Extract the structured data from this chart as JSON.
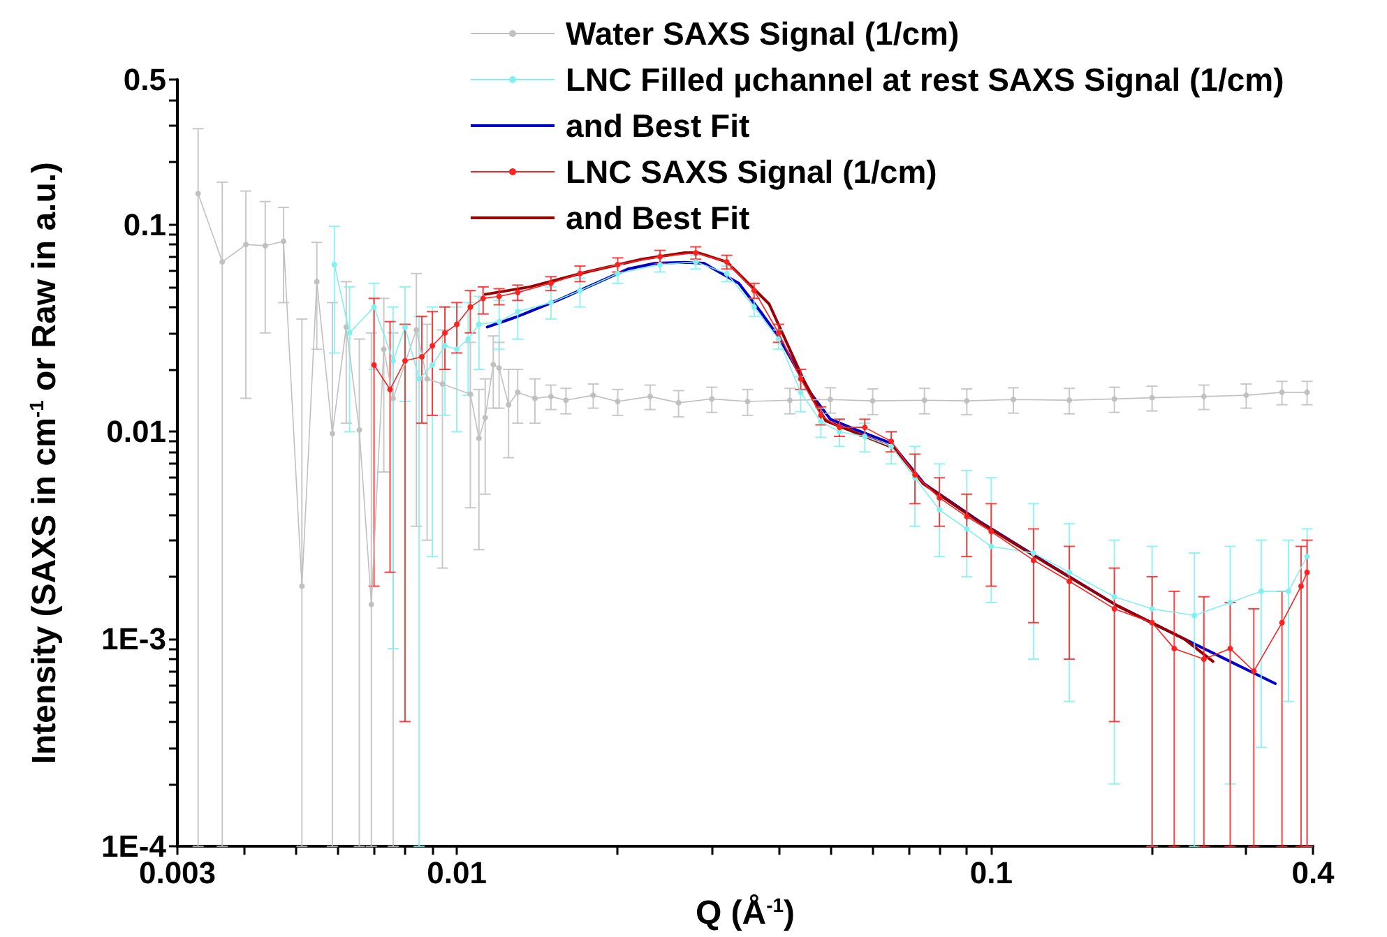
{
  "chart_data": {
    "type": "line",
    "xlabel": "Q (Å$^{-1}$)",
    "ylabel": "Intensity (SAXS in cm$^{-1}$ or Raw in a.u.)",
    "log": "xy",
    "grid": false,
    "legend": "top right",
    "xlim": [
      0.003,
      0.4
    ],
    "ylim": [
      0.0001,
      0.5
    ],
    "xticks": [
      0.003,
      {
        "value": 0.004,
        "label": null
      },
      {
        "value": 0.005,
        "label": null
      },
      {
        "value": 0.006,
        "label": null
      },
      {
        "value": 0.007,
        "label": null
      },
      {
        "value": 0.008,
        "label": null
      },
      {
        "value": 0.009,
        "label": null
      },
      0.01,
      {
        "value": 0.02,
        "label": null
      },
      {
        "value": 0.03,
        "label": null
      },
      {
        "value": 0.04,
        "label": null
      },
      {
        "value": 0.05,
        "label": null
      },
      {
        "value": 0.06,
        "label": null
      },
      {
        "value": 0.07,
        "label": null
      },
      {
        "value": 0.08,
        "label": null
      },
      {
        "value": 0.09,
        "label": null
      },
      0.1,
      {
        "value": 0.2,
        "label": null
      },
      {
        "value": 0.3,
        "label": null
      },
      0.4
    ],
    "yticks": [
      {
        "value": 0.0001,
        "label": "1E-4"
      },
      {
        "value": 0.0002,
        "label": null
      },
      {
        "value": 0.0003,
        "label": null
      },
      {
        "value": 0.0004,
        "label": null
      },
      {
        "value": 0.0005,
        "label": null
      },
      {
        "value": 0.0006,
        "label": null
      },
      {
        "value": 0.0007,
        "label": null
      },
      {
        "value": 0.0008,
        "label": null
      },
      {
        "value": 0.0009,
        "label": null
      },
      {
        "value": 0.001,
        "label": "1E-3"
      },
      {
        "value": 0.002,
        "label": null
      },
      {
        "value": 0.003,
        "label": null
      },
      {
        "value": 0.004,
        "label": null
      },
      {
        "value": 0.005,
        "label": null
      },
      {
        "value": 0.006,
        "label": null
      },
      {
        "value": 0.007,
        "label": null
      },
      {
        "value": 0.008,
        "label": null
      },
      {
        "value": 0.009,
        "label": null
      },
      0.01,
      {
        "value": 0.02,
        "label": null
      },
      {
        "value": 0.03,
        "label": null
      },
      {
        "value": 0.04,
        "label": null
      },
      {
        "value": 0.05,
        "label": null
      },
      {
        "value": 0.06,
        "label": null
      },
      {
        "value": 0.07,
        "label": null
      },
      {
        "value": 0.08,
        "label": null
      },
      {
        "value": 0.09,
        "label": null
      },
      0.1,
      {
        "value": 0.2,
        "label": null
      },
      {
        "value": 0.3,
        "label": null
      },
      {
        "value": 0.4,
        "label": null
      },
      0.5
    ],
    "series": [
      {
        "name": "Water SAXS Signal (1/cm)",
        "marker": "circle",
        "color": "#c0c0c0",
        "x": [
          0.00328,
          0.00364,
          0.00403,
          0.00438,
          0.00474,
          0.00513,
          0.00547,
          0.00585,
          0.00621,
          0.00657,
          0.00692,
          0.0073,
          0.0076,
          0.0084,
          0.0088,
          0.0094,
          0.0106,
          0.011,
          0.0113,
          0.0117,
          0.012,
          0.0125,
          0.013,
          0.014,
          0.015,
          0.016,
          0.018,
          0.02,
          0.023,
          0.026,
          0.03,
          0.035,
          0.042,
          0.05,
          0.06,
          0.075,
          0.09,
          0.11,
          0.14,
          0.17,
          0.2,
          0.25,
          0.3,
          0.35,
          0.39
        ],
        "values": [
          0.141,
          0.066,
          0.08,
          0.079,
          0.083,
          0.0018,
          0.053,
          0.0098,
          0.032,
          0.0102,
          0.00147,
          0.025,
          0.0145,
          0.031,
          0.018,
          0.017,
          0.0152,
          0.0093,
          0.0117,
          0.0211,
          0.0203,
          0.0135,
          0.0155,
          0.0145,
          0.0148,
          0.0142,
          0.015,
          0.014,
          0.0148,
          0.0138,
          0.0144,
          0.014,
          0.0142,
          0.0143,
          0.0141,
          0.0142,
          0.0141,
          0.0143,
          0.0142,
          0.0144,
          0.0146,
          0.0148,
          0.015,
          0.0155,
          0.0155
        ],
        "errors": [
          [
            0.0001,
            0.29
          ],
          [
            0.0001,
            0.16
          ],
          [
            0.0145,
            0.145
          ],
          [
            0.03,
            0.129
          ],
          [
            0.042,
            0.121
          ],
          [
            0.0001,
            0.035
          ],
          [
            0.025,
            0.082
          ],
          [
            0.0001,
            0.042
          ],
          [
            0.011,
            0.053
          ],
          [
            0.0001,
            0.028
          ],
          [
            0.0001,
            0.03
          ],
          [
            0.0064,
            0.044
          ],
          [
            0.0001,
            0.03
          ],
          [
            0.0035,
            0.058
          ],
          [
            0.003,
            0.033
          ],
          [
            0.0022,
            0.031
          ],
          [
            0.0043,
            0.027
          ],
          [
            0.0027,
            0.016
          ],
          [
            0.005,
            0.018
          ],
          [
            0.013,
            0.029
          ],
          [
            0.013,
            0.027
          ],
          [
            0.0075,
            0.02
          ],
          [
            0.011,
            0.02
          ],
          [
            0.011,
            0.018
          ],
          0.002,
          0.002,
          0.002,
          0.002,
          0.002,
          0.002,
          0.002,
          0.002,
          0.002,
          0.002,
          0.002,
          0.002,
          0.002,
          0.002,
          0.002,
          0.002,
          0.002,
          0.002,
          0.002,
          0.002,
          0.002
        ]
      },
      {
        "name": "LNC Filled µchannel at rest SAXS Signal (1/cm)",
        "marker": "circle",
        "color": "#80f0f0",
        "x": [
          0.0059,
          0.0063,
          0.007,
          0.0076,
          0.008,
          0.0085,
          0.009,
          0.0095,
          0.01,
          0.0105,
          0.011,
          0.012,
          0.013,
          0.015,
          0.017,
          0.02,
          0.024,
          0.028,
          0.032,
          0.036,
          0.04,
          0.044,
          0.048,
          0.052,
          0.058,
          0.065,
          0.072,
          0.08,
          0.09,
          0.1,
          0.12,
          0.14,
          0.17,
          0.2,
          0.24,
          0.28,
          0.32,
          0.36,
          0.39
        ],
        "values": [
          0.064,
          0.03,
          0.04,
          0.022,
          0.032,
          0.018,
          0.021,
          0.026,
          0.025,
          0.028,
          0.033,
          0.034,
          0.038,
          0.042,
          0.048,
          0.058,
          0.064,
          0.066,
          0.058,
          0.04,
          0.028,
          0.0155,
          0.0112,
          0.01,
          0.0095,
          0.0085,
          0.006,
          0.0042,
          0.0034,
          0.0028,
          0.0026,
          0.0021,
          0.0016,
          0.0014,
          0.0013,
          0.0015,
          0.0017,
          0.0017,
          0.0025
        ],
        "errors": [
          [
            0.024,
            0.098
          ],
          [
            0.01,
            0.05
          ],
          [
            0.02,
            0.052
          ],
          [
            0.0009,
            0.04
          ],
          [
            0.014,
            0.05
          ],
          [
            0.0001,
            0.036
          ],
          [
            0.0025,
            0.04
          ],
          [
            0.012,
            0.04
          ],
          [
            0.01,
            0.04
          ],
          [
            0.015,
            0.042
          ],
          [
            0.02,
            0.045
          ],
          [
            0.025,
            0.043
          ],
          [
            0.028,
            0.047
          ],
          [
            0.035,
            0.05
          ],
          [
            0.04,
            0.055
          ],
          [
            0.052,
            0.064
          ],
          0.005,
          0.005,
          0.005,
          0.004,
          0.003,
          0.003,
          0.0018,
          0.0015,
          0.0015,
          0.0015,
          [
            0.0035,
            0.0085
          ],
          [
            0.0025,
            0.007
          ],
          [
            0.002,
            0.0065
          ],
          [
            0.0015,
            0.006
          ],
          [
            0.0008,
            0.0045
          ],
          [
            0.0005,
            0.0036
          ],
          [
            0.0002,
            0.003
          ],
          [
            0.0001,
            0.0028
          ],
          [
            0.0001,
            0.0026
          ],
          [
            0.0002,
            0.0028
          ],
          [
            0.0003,
            0.003
          ],
          [
            0.0005,
            0.003
          ],
          [
            0.0001,
            0.0034
          ]
        ]
      },
      {
        "name": "and Best Fit",
        "marker": "none",
        "color": "#0000cc",
        "x": [
          0.0114,
          0.013,
          0.0156,
          0.0185,
          0.0209,
          0.0235,
          0.0267,
          0.029,
          0.0337,
          0.037,
          0.04,
          0.0458,
          0.05,
          0.056,
          0.065,
          0.075,
          0.095,
          0.128,
          0.172,
          0.23,
          0.28,
          0.34
        ],
        "values": [
          0.032,
          0.036,
          0.0436,
          0.053,
          0.061,
          0.065,
          0.0657,
          0.065,
          0.052,
          0.038,
          0.0287,
          0.0155,
          0.0115,
          0.0102,
          0.0088,
          0.0056,
          0.0037,
          0.0023,
          0.00145,
          0.001,
          0.00078,
          0.00061
        ]
      },
      {
        "name": "LNC SAXS Signal (1/cm)",
        "marker": "circle",
        "color": "#ff2020",
        "x": [
          0.007,
          0.0075,
          0.008,
          0.0086,
          0.009,
          0.0095,
          0.01,
          0.0106,
          0.0112,
          0.012,
          0.013,
          0.015,
          0.017,
          0.02,
          0.024,
          0.028,
          0.032,
          0.036,
          0.04,
          0.044,
          0.048,
          0.052,
          0.058,
          0.065,
          0.072,
          0.08,
          0.09,
          0.1,
          0.12,
          0.14,
          0.17,
          0.2,
          0.22,
          0.25,
          0.28,
          0.31,
          0.35,
          0.38,
          0.39
        ],
        "values": [
          0.021,
          0.016,
          0.022,
          0.023,
          0.026,
          0.03,
          0.033,
          0.04,
          0.044,
          0.045,
          0.047,
          0.052,
          0.058,
          0.064,
          0.07,
          0.073,
          0.066,
          0.048,
          0.03,
          0.018,
          0.012,
          0.0105,
          0.0105,
          0.009,
          0.0062,
          0.0048,
          0.0039,
          0.0033,
          0.0024,
          0.0019,
          0.0014,
          0.0012,
          0.0009,
          0.0008,
          0.0009,
          0.0007,
          0.0012,
          0.0018,
          0.0021
        ],
        "errors": [
          [
            0.0018,
            0.044
          ],
          [
            0.0021,
            0.034
          ],
          [
            0.0004,
            0.033
          ],
          [
            0.011,
            0.036
          ],
          [
            0.012,
            0.038
          ],
          [
            0.02,
            0.04
          ],
          [
            0.024,
            0.042
          ],
          [
            0.03,
            0.048
          ],
          [
            0.037,
            0.05
          ],
          0.004,
          0.004,
          0.004,
          0.005,
          0.005,
          0.005,
          0.005,
          0.005,
          0.004,
          0.003,
          0.002,
          0.0012,
          0.001,
          0.001,
          0.001,
          [
            0.0045,
            0.0078
          ],
          [
            0.0035,
            0.006
          ],
          [
            0.0025,
            0.005
          ],
          [
            0.0018,
            0.0045
          ],
          [
            0.0012,
            0.0034
          ],
          [
            0.0008,
            0.0028
          ],
          [
            0.0004,
            0.0022
          ],
          [
            0.0001,
            0.002
          ],
          [
            0.0001,
            0.0017
          ],
          [
            0.0001,
            0.0016
          ],
          [
            0.0001,
            0.0015
          ],
          [
            0.0001,
            0.0014
          ],
          [
            0.0001,
            0.0017
          ],
          [
            0.0001,
            0.0028
          ],
          [
            0.0001,
            0.003
          ]
        ]
      },
      {
        "name": "and Best Fit",
        "marker": "none",
        "color": "#9a0000",
        "x": [
          0.0113,
          0.0137,
          0.0175,
          0.0222,
          0.0267,
          0.0283,
          0.032,
          0.0384,
          0.0447,
          0.049,
          0.0569,
          0.066,
          0.0747,
          0.0945,
          0.1275,
          0.172,
          0.23,
          0.26
        ],
        "values": [
          0.046,
          0.05,
          0.059,
          0.068,
          0.073,
          0.073,
          0.066,
          0.0414,
          0.0175,
          0.0113,
          0.0097,
          0.0083,
          0.0056,
          0.0037,
          0.0023,
          0.00145,
          0.001,
          0.00078
        ]
      }
    ]
  }
}
